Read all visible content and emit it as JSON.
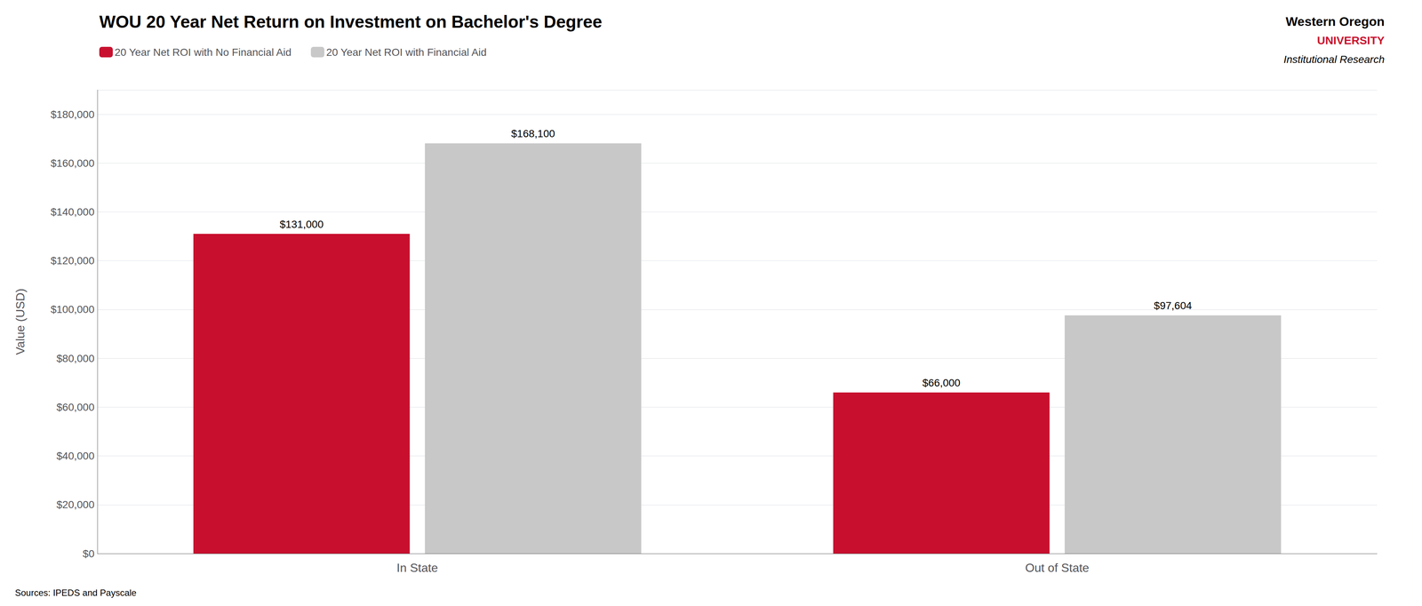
{
  "chart_data": {
    "type": "bar",
    "title": "WOU 20 Year Net Return on Investment on Bachelor's Degree",
    "y_label": "Value (USD)",
    "categories": [
      "In State",
      "Out of State"
    ],
    "series": [
      {
        "name": "20 Year Net ROI with No Financial Aid",
        "color": "#C8102E",
        "values": [
          131000,
          66000
        ],
        "value_labels": [
          "$131,000",
          "$66,000"
        ]
      },
      {
        "name": "20 Year Net ROI with Financial Aid",
        "color": "#C8C8C8",
        "values": [
          168100,
          97604
        ],
        "value_labels": [
          "$168,100",
          "$97,604"
        ]
      }
    ],
    "ylim": [
      0,
      190000
    ],
    "yticks": [
      {
        "value": 0,
        "label": "$0"
      },
      {
        "value": 20000,
        "label": "$20,000"
      },
      {
        "value": 40000,
        "label": "$40,000"
      },
      {
        "value": 60000,
        "label": "$60,000"
      },
      {
        "value": 80000,
        "label": "$80,000"
      },
      {
        "value": 100000,
        "label": "$100,000"
      },
      {
        "value": 120000,
        "label": "$120,000"
      },
      {
        "value": 140000,
        "label": "$140,000"
      },
      {
        "value": 160000,
        "label": "$160,000"
      },
      {
        "value": 180000,
        "label": "$180,000"
      }
    ],
    "grid": true,
    "legend": "upper left",
    "data_labels": true,
    "annotations": [
      {
        "text": "Western Oregon"
      },
      {
        "text": "UNIVERSITY",
        "color": "#C8102E"
      },
      {
        "text": "Institutional Research"
      },
      {
        "text": "Sources: IPEDS and Payscale"
      }
    ]
  }
}
